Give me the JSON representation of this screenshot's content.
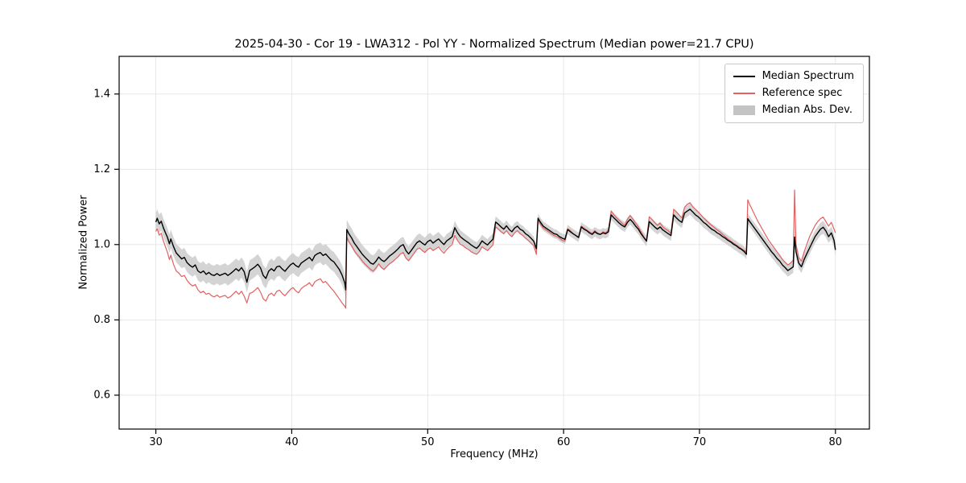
{
  "chart_data": {
    "type": "line",
    "title": "2025-04-30 - Cor 19 - LWA312 - Pol YY - Normalized Spectrum (Median power=21.7 CPU)",
    "xlabel": "Frequency (MHz)",
    "ylabel": "Normalized Power",
    "xlim": [
      27.3,
      82.5
    ],
    "ylim": [
      0.51,
      1.5
    ],
    "xticks": [
      30,
      40,
      50,
      60,
      70,
      80
    ],
    "yticks": [
      0.6,
      0.8,
      1.0,
      1.2,
      1.4
    ],
    "grid": true,
    "legend": {
      "position": "upper right",
      "entries": [
        {
          "label": "Median Spectrum",
          "type": "line",
          "color": "#000000"
        },
        {
          "label": "Reference spec",
          "type": "line",
          "color": "#e26060"
        },
        {
          "label": "Median Abs. Dev.",
          "type": "patch",
          "color": "#c4c4c4"
        }
      ]
    },
    "colors": {
      "median": "#000000",
      "reference": "#e26060",
      "band": "#c9c9c9",
      "grid": "#e4e4e4",
      "spine": "#000000"
    },
    "series_names": [
      "frequency_mhz",
      "median_spectrum",
      "reference_spec"
    ],
    "mad_halfwidth": [
      [
        30,
        0.024
      ],
      [
        36,
        0.027
      ],
      [
        44,
        0.026
      ],
      [
        48,
        0.021
      ],
      [
        55,
        0.015
      ],
      [
        58,
        0.012
      ],
      [
        64,
        0.013
      ],
      [
        69,
        0.015
      ],
      [
        73,
        0.013
      ],
      [
        76,
        0.016
      ],
      [
        80,
        0.017
      ]
    ],
    "points": [
      [
        30,
        1.06,
        1.035
      ],
      [
        30.1,
        1.07,
        1.042
      ],
      [
        30.25,
        1.055,
        1.025
      ],
      [
        30.4,
        1.062,
        1.03
      ],
      [
        30.55,
        1.045,
        1.01
      ],
      [
        30.7,
        1.032,
        0.995
      ],
      [
        30.85,
        1.02,
        0.98
      ],
      [
        31,
        1.002,
        0.96
      ],
      [
        31.1,
        1.015,
        0.972
      ],
      [
        31.3,
        0.995,
        0.948
      ],
      [
        31.5,
        0.978,
        0.93
      ],
      [
        31.7,
        0.97,
        0.924
      ],
      [
        31.9,
        0.962,
        0.915
      ],
      [
        32.1,
        0.966,
        0.918
      ],
      [
        32.3,
        0.952,
        0.905
      ],
      [
        32.5,
        0.945,
        0.896
      ],
      [
        32.7,
        0.94,
        0.89
      ],
      [
        32.9,
        0.946,
        0.894
      ],
      [
        33.1,
        0.93,
        0.88
      ],
      [
        33.3,
        0.925,
        0.872
      ],
      [
        33.5,
        0.93,
        0.876
      ],
      [
        33.7,
        0.921,
        0.868
      ],
      [
        33.9,
        0.926,
        0.871
      ],
      [
        34.1,
        0.92,
        0.864
      ],
      [
        34.3,
        0.918,
        0.861
      ],
      [
        34.5,
        0.923,
        0.866
      ],
      [
        34.7,
        0.918,
        0.86
      ],
      [
        34.9,
        0.921,
        0.863
      ],
      [
        35.1,
        0.924,
        0.865
      ],
      [
        35.3,
        0.918,
        0.858
      ],
      [
        35.5,
        0.923,
        0.862
      ],
      [
        35.7,
        0.929,
        0.869
      ],
      [
        35.9,
        0.936,
        0.876
      ],
      [
        36.1,
        0.93,
        0.868
      ],
      [
        36.3,
        0.939,
        0.876
      ],
      [
        36.5,
        0.928,
        0.863
      ],
      [
        36.7,
        0.9,
        0.845
      ],
      [
        36.9,
        0.931,
        0.87
      ],
      [
        37.1,
        0.936,
        0.873
      ],
      [
        37.3,
        0.941,
        0.879
      ],
      [
        37.5,
        0.948,
        0.886
      ],
      [
        37.7,
        0.938,
        0.874
      ],
      [
        37.9,
        0.918,
        0.856
      ],
      [
        38.1,
        0.91,
        0.85
      ],
      [
        38.3,
        0.929,
        0.866
      ],
      [
        38.5,
        0.936,
        0.871
      ],
      [
        38.7,
        0.93,
        0.864
      ],
      [
        38.9,
        0.941,
        0.876
      ],
      [
        39.1,
        0.943,
        0.879
      ],
      [
        39.3,
        0.935,
        0.87
      ],
      [
        39.5,
        0.929,
        0.864
      ],
      [
        39.7,
        0.938,
        0.873
      ],
      [
        39.9,
        0.946,
        0.881
      ],
      [
        40.1,
        0.951,
        0.886
      ],
      [
        40.3,
        0.944,
        0.877
      ],
      [
        40.5,
        0.94,
        0.872
      ],
      [
        40.7,
        0.951,
        0.883
      ],
      [
        40.9,
        0.956,
        0.889
      ],
      [
        41.1,
        0.961,
        0.893
      ],
      [
        41.3,
        0.966,
        0.899
      ],
      [
        41.5,
        0.957,
        0.889
      ],
      [
        41.7,
        0.971,
        0.901
      ],
      [
        41.9,
        0.976,
        0.906
      ],
      [
        42.1,
        0.979,
        0.909
      ],
      [
        42.3,
        0.971,
        0.899
      ],
      [
        42.5,
        0.975,
        0.902
      ],
      [
        42.7,
        0.967,
        0.893
      ],
      [
        42.9,
        0.959,
        0.884
      ],
      [
        43.1,
        0.954,
        0.876
      ],
      [
        43.3,
        0.944,
        0.866
      ],
      [
        43.5,
        0.934,
        0.856
      ],
      [
        43.7,
        0.919,
        0.845
      ],
      [
        43.9,
        0.898,
        0.836
      ],
      [
        43.97,
        0.88,
        0.831
      ],
      [
        44.05,
        1.04,
        1.02
      ],
      [
        44.2,
        1.029,
        1.008
      ],
      [
        44.4,
        1.018,
        0.997
      ],
      [
        44.6,
        1.004,
        0.984
      ],
      [
        44.8,
        0.994,
        0.974
      ],
      [
        45,
        0.984,
        0.966
      ],
      [
        45.2,
        0.974,
        0.956
      ],
      [
        45.4,
        0.966,
        0.948
      ],
      [
        45.6,
        0.959,
        0.941
      ],
      [
        45.8,
        0.951,
        0.934
      ],
      [
        46,
        0.948,
        0.93
      ],
      [
        46.2,
        0.956,
        0.938
      ],
      [
        46.4,
        0.967,
        0.949
      ],
      [
        46.6,
        0.959,
        0.939
      ],
      [
        46.8,
        0.955,
        0.934
      ],
      [
        47,
        0.962,
        0.942
      ],
      [
        47.2,
        0.97,
        0.949
      ],
      [
        47.4,
        0.975,
        0.954
      ],
      [
        47.6,
        0.981,
        0.96
      ],
      [
        47.8,
        0.988,
        0.967
      ],
      [
        48,
        0.996,
        0.975
      ],
      [
        48.2,
        1.0,
        0.979
      ],
      [
        48.4,
        0.984,
        0.964
      ],
      [
        48.6,
        0.975,
        0.957
      ],
      [
        48.8,
        0.985,
        0.967
      ],
      [
        49,
        0.995,
        0.977
      ],
      [
        49.2,
        1.005,
        0.987
      ],
      [
        49.4,
        1.01,
        0.991
      ],
      [
        49.6,
        1.004,
        0.984
      ],
      [
        49.8,
        0.999,
        0.979
      ],
      [
        50,
        1.008,
        0.987
      ],
      [
        50.2,
        1.012,
        0.991
      ],
      [
        50.4,
        1.004,
        0.984
      ],
      [
        50.6,
        1.01,
        0.989
      ],
      [
        50.8,
        1.015,
        0.994
      ],
      [
        51,
        1.007,
        0.984
      ],
      [
        51.2,
        1.0,
        0.977
      ],
      [
        51.4,
        1.01,
        0.987
      ],
      [
        51.6,
        1.015,
        0.994
      ],
      [
        51.8,
        1.021,
        1.0
      ],
      [
        52,
        1.045,
        1.024
      ],
      [
        52.2,
        1.031,
        1.011
      ],
      [
        52.4,
        1.021,
        1.001
      ],
      [
        52.6,
        1.015,
        0.997
      ],
      [
        52.8,
        1.01,
        0.991
      ],
      [
        53,
        1.005,
        0.987
      ],
      [
        53.2,
        0.999,
        0.981
      ],
      [
        53.4,
        0.994,
        0.977
      ],
      [
        53.6,
        0.99,
        0.974
      ],
      [
        53.8,
        0.998,
        0.981
      ],
      [
        54,
        1.01,
        0.994
      ],
      [
        54.2,
        1.004,
        0.989
      ],
      [
        54.4,
        0.999,
        0.984
      ],
      [
        54.6,
        1.007,
        0.991
      ],
      [
        54.8,
        1.014,
        0.999
      ],
      [
        55,
        1.06,
        1.047
      ],
      [
        55.2,
        1.054,
        1.041
      ],
      [
        55.4,
        1.047,
        1.034
      ],
      [
        55.6,
        1.041,
        1.029
      ],
      [
        55.8,
        1.05,
        1.037
      ],
      [
        56,
        1.04,
        1.027
      ],
      [
        56.2,
        1.034,
        1.021
      ],
      [
        56.4,
        1.044,
        1.031
      ],
      [
        56.6,
        1.049,
        1.037
      ],
      [
        56.8,
        1.041,
        1.029
      ],
      [
        57,
        1.037,
        1.024
      ],
      [
        57.2,
        1.029,
        1.017
      ],
      [
        57.4,
        1.024,
        1.011
      ],
      [
        57.6,
        1.017,
        1.004
      ],
      [
        57.8,
        1.009,
        0.997
      ],
      [
        58,
        0.989,
        0.974
      ],
      [
        58.12,
        1.07,
        1.067
      ],
      [
        58.3,
        1.059,
        1.054
      ],
      [
        58.5,
        1.049,
        1.044
      ],
      [
        58.7,
        1.044,
        1.039
      ],
      [
        58.9,
        1.039,
        1.034
      ],
      [
        59.1,
        1.034,
        1.029
      ],
      [
        59.3,
        1.029,
        1.024
      ],
      [
        59.5,
        1.027,
        1.021
      ],
      [
        59.7,
        1.021,
        1.017
      ],
      [
        59.9,
        1.017,
        1.011
      ],
      [
        60.1,
        1.014,
        1.009
      ],
      [
        60.3,
        1.04,
        1.042
      ],
      [
        60.5,
        1.034,
        1.037
      ],
      [
        60.7,
        1.029,
        1.029
      ],
      [
        60.9,
        1.024,
        1.024
      ],
      [
        61.1,
        1.019,
        1.019
      ],
      [
        61.3,
        1.047,
        1.049
      ],
      [
        61.5,
        1.041,
        1.044
      ],
      [
        61.7,
        1.037,
        1.039
      ],
      [
        61.9,
        1.031,
        1.034
      ],
      [
        62.1,
        1.027,
        1.029
      ],
      [
        62.3,
        1.034,
        1.037
      ],
      [
        62.5,
        1.029,
        1.031
      ],
      [
        62.7,
        1.027,
        1.027
      ],
      [
        62.9,
        1.031,
        1.034
      ],
      [
        63.1,
        1.029,
        1.031
      ],
      [
        63.3,
        1.034,
        1.039
      ],
      [
        63.5,
        1.079,
        1.089
      ],
      [
        63.7,
        1.071,
        1.079
      ],
      [
        63.9,
        1.064,
        1.071
      ],
      [
        64.1,
        1.057,
        1.064
      ],
      [
        64.3,
        1.051,
        1.057
      ],
      [
        64.5,
        1.047,
        1.051
      ],
      [
        64.7,
        1.059,
        1.067
      ],
      [
        64.9,
        1.067,
        1.077
      ],
      [
        65.1,
        1.059,
        1.067
      ],
      [
        65.3,
        1.049,
        1.057
      ],
      [
        65.5,
        1.041,
        1.047
      ],
      [
        65.7,
        1.029,
        1.034
      ],
      [
        65.9,
        1.019,
        1.021
      ],
      [
        66.1,
        1.009,
        1.011
      ],
      [
        66.3,
        1.061,
        1.074
      ],
      [
        66.5,
        1.054,
        1.067
      ],
      [
        66.7,
        1.047,
        1.059
      ],
      [
        66.9,
        1.041,
        1.051
      ],
      [
        67.1,
        1.047,
        1.057
      ],
      [
        67.3,
        1.039,
        1.047
      ],
      [
        67.5,
        1.034,
        1.041
      ],
      [
        67.7,
        1.029,
        1.037
      ],
      [
        67.9,
        1.024,
        1.029
      ],
      [
        68.1,
        1.079,
        1.094
      ],
      [
        68.3,
        1.071,
        1.087
      ],
      [
        68.5,
        1.064,
        1.079
      ],
      [
        68.7,
        1.059,
        1.071
      ],
      [
        68.9,
        1.084,
        1.099
      ],
      [
        69.1,
        1.089,
        1.107
      ],
      [
        69.3,
        1.094,
        1.111
      ],
      [
        69.5,
        1.087,
        1.101
      ],
      [
        69.7,
        1.079,
        1.094
      ],
      [
        69.9,
        1.074,
        1.087
      ],
      [
        70.1,
        1.067,
        1.079
      ],
      [
        70.3,
        1.059,
        1.071
      ],
      [
        70.5,
        1.054,
        1.064
      ],
      [
        70.7,
        1.047,
        1.057
      ],
      [
        70.9,
        1.041,
        1.051
      ],
      [
        71.1,
        1.037,
        1.045
      ],
      [
        71.3,
        1.031,
        1.039
      ],
      [
        71.5,
        1.027,
        1.034
      ],
      [
        71.7,
        1.021,
        1.027
      ],
      [
        71.9,
        1.017,
        1.021
      ],
      [
        72.1,
        1.011,
        1.015
      ],
      [
        72.3,
        1.007,
        1.009
      ],
      [
        72.5,
        1.001,
        1.004
      ],
      [
        72.7,
        0.997,
        0.999
      ],
      [
        72.9,
        0.991,
        0.994
      ],
      [
        73.1,
        0.987,
        0.989
      ],
      [
        73.3,
        0.981,
        0.984
      ],
      [
        73.45,
        0.974,
        0.981
      ],
      [
        73.55,
        1.069,
        1.119
      ],
      [
        73.7,
        1.061,
        1.106
      ],
      [
        73.9,
        1.051,
        1.091
      ],
      [
        74.1,
        1.041,
        1.076
      ],
      [
        74.3,
        1.031,
        1.061
      ],
      [
        74.5,
        1.021,
        1.049
      ],
      [
        74.7,
        1.011,
        1.036
      ],
      [
        74.9,
        1.001,
        1.023
      ],
      [
        75.1,
        0.991,
        1.011
      ],
      [
        75.3,
        0.981,
        1.001
      ],
      [
        75.5,
        0.973,
        0.991
      ],
      [
        75.7,
        0.963,
        0.981
      ],
      [
        75.9,
        0.956,
        0.971
      ],
      [
        76.1,
        0.946,
        0.961
      ],
      [
        76.3,
        0.939,
        0.953
      ],
      [
        76.5,
        0.931,
        0.946
      ],
      [
        76.7,
        0.936,
        0.951
      ],
      [
        76.9,
        0.941,
        0.959
      ],
      [
        77,
        1.02,
        1.145
      ],
      [
        77.1,
        0.981,
        1.001
      ],
      [
        77.3,
        0.951,
        0.966
      ],
      [
        77.5,
        0.941,
        0.956
      ],
      [
        77.7,
        0.961,
        0.981
      ],
      [
        77.9,
        0.976,
        1.001
      ],
      [
        78.1,
        0.991,
        1.021
      ],
      [
        78.3,
        1.006,
        1.036
      ],
      [
        78.5,
        1.021,
        1.051
      ],
      [
        78.7,
        1.031,
        1.061
      ],
      [
        78.9,
        1.041,
        1.069
      ],
      [
        79.1,
        1.046,
        1.073
      ],
      [
        79.3,
        1.036,
        1.061
      ],
      [
        79.5,
        1.021,
        1.049
      ],
      [
        79.7,
        1.031,
        1.059
      ],
      [
        79.9,
        1.011,
        1.041
      ],
      [
        80,
        0.986,
        1.031
      ]
    ]
  }
}
